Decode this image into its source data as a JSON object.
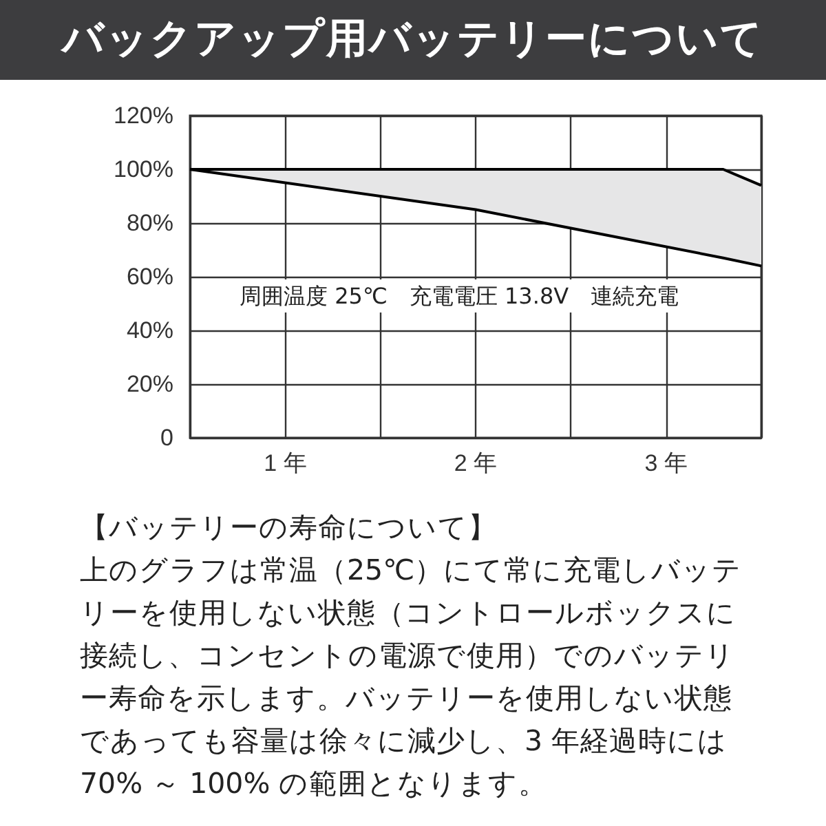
{
  "chart_data": {
    "type": "line",
    "title": "バックアップ用バッテリーについて",
    "annotations": [
      "周囲温度 25℃　充電電圧 13.8V　連続充電",
      "【バッテリーの寿命について】",
      "上のグラフは常温（25℃）にて常に充電しバッテリーを使用しない状態（コントロールボックスに接続し、コンセントの電源で使用）でのバッテリー寿命を示します。バッテリーを使用しない状態であっても容量は徐々に減少し、3 年経過時には 70% ～ 100% の範囲となります。"
    ],
    "series": [
      {
        "color": "#000000",
        "x": [
          0.5,
          3.3,
          3.5
        ],
        "values": [
          100,
          100,
          94
        ]
      },
      {
        "color": "#000000",
        "x": [
          0.5,
          2,
          3.3,
          3.5
        ],
        "values": [
          100,
          85,
          67,
          64
        ],
        "lower": [
          100,
          85,
          67,
          64
        ],
        "upper": [
          100,
          100,
          100,
          94
        ]
      }
    ],
    "xlim": [
      0.5,
      3.5
    ],
    "xticks": [
      {
        "value": 0.5,
        "label": null
      },
      {
        "value": 1,
        "label": "1 年"
      },
      {
        "value": 1.5,
        "label": null
      },
      {
        "value": 2,
        "label": "2 年"
      },
      {
        "value": 2.5,
        "label": null
      },
      {
        "value": 3,
        "label": "3 年"
      },
      {
        "value": 3.5,
        "label": null
      }
    ],
    "ylim": [
      0,
      120
    ],
    "yticks": [
      0,
      {
        "value": 20,
        "label": "20%"
      },
      {
        "value": 40,
        "label": "40%"
      },
      {
        "value": 60,
        "label": "60%"
      },
      {
        "value": 80,
        "label": "80%"
      },
      {
        "value": 100,
        "label": "100%"
      },
      {
        "value": 120,
        "label": "120%"
      }
    ],
    "grid": true,
    "marker": "none",
    "line_style": "solid"
  }
}
